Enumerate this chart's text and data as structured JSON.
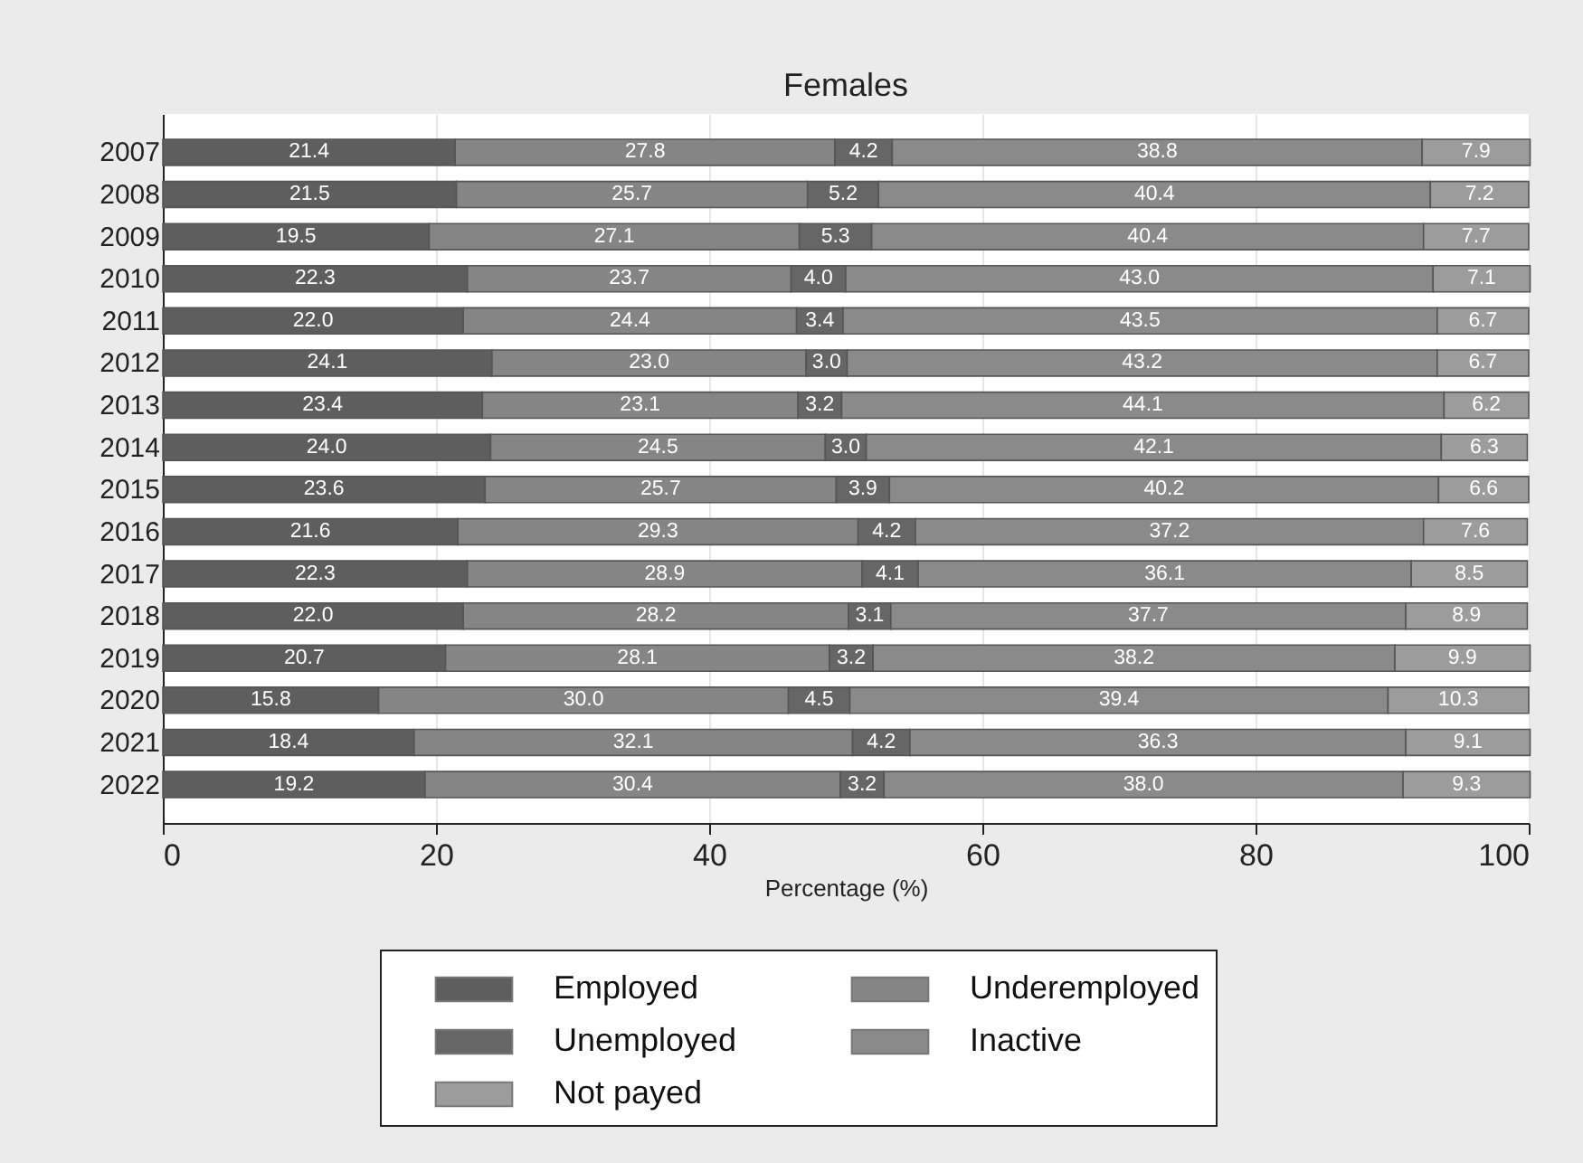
{
  "chart_data": {
    "type": "bar",
    "orientation": "horizontal",
    "stacked": true,
    "title": "Females",
    "xlabel": "Percentage (%)",
    "categories": [
      "2007",
      "2008",
      "2009",
      "2010",
      "2011",
      "2012",
      "2013",
      "2014",
      "2015",
      "2016",
      "2017",
      "2018",
      "2019",
      "2020",
      "2021",
      "2022"
    ],
    "series": [
      {
        "name": "Employed",
        "color": "#5e5e5e",
        "values": [
          21.4,
          21.5,
          19.5,
          22.3,
          22.0,
          24.1,
          23.4,
          24.0,
          23.6,
          21.6,
          22.3,
          22.0,
          20.7,
          15.8,
          18.4,
          19.2
        ],
        "value_labels": [
          "21.4",
          "21.5",
          "19.5",
          "22.3",
          "22.0",
          "24.1",
          "23.4",
          "24.0",
          "23.6",
          "21.6",
          "22.3",
          "22.0",
          "20.7",
          "15.8",
          "18.4",
          "19.2"
        ]
      },
      {
        "name": "Underemployed",
        "color": "#858585",
        "values": [
          27.8,
          25.7,
          27.1,
          23.7,
          24.4,
          23.0,
          23.1,
          24.5,
          25.7,
          29.3,
          28.9,
          28.2,
          28.1,
          30.0,
          32.1,
          30.4
        ],
        "value_labels": [
          "27.8",
          "25.7",
          "27.1",
          "23.7",
          "24.4",
          "23.0",
          "23.1",
          "24.5",
          "25.7",
          "29.3",
          "28.9",
          "28.2",
          "28.1",
          "30.0",
          "32.1",
          "30.4"
        ]
      },
      {
        "name": "Unemployed",
        "color": "#666666",
        "values": [
          4.2,
          5.2,
          5.3,
          4.0,
          3.4,
          3.0,
          3.2,
          3.0,
          3.9,
          4.2,
          4.1,
          3.1,
          3.2,
          4.5,
          4.2,
          3.2
        ],
        "value_labels": [
          "4.2",
          "5.2",
          "5.3",
          "4.0",
          "3.4",
          "3.0",
          "3.2",
          "3.0",
          "3.9",
          "4.2",
          "4.1",
          "3.1",
          "3.2",
          "4.5",
          "4.2",
          "3.2"
        ]
      },
      {
        "name": "Inactive",
        "color": "#8a8a8a",
        "values": [
          38.8,
          40.4,
          40.4,
          43.0,
          43.5,
          43.2,
          44.1,
          42.1,
          40.2,
          37.2,
          36.1,
          37.7,
          38.2,
          39.4,
          36.3,
          38.0
        ],
        "value_labels": [
          "38.8",
          "40.4",
          "40.4",
          "43.0",
          "43.5",
          "43.2",
          "44.1",
          "42.1",
          "40.2",
          "37.2",
          "36.1",
          "37.7",
          "38.2",
          "39.4",
          "36.3",
          "38.0"
        ]
      },
      {
        "name": "Not payed",
        "color": "#9c9c9c",
        "values": [
          7.9,
          7.2,
          7.7,
          7.1,
          6.7,
          6.7,
          6.2,
          6.3,
          6.6,
          7.6,
          8.5,
          8.9,
          9.9,
          10.3,
          9.1,
          9.3
        ],
        "value_labels": [
          "7.9",
          "7.2",
          "7.7",
          "7.1",
          "6.7",
          "6.7",
          "6.2",
          "6.3",
          "6.6",
          "7.6",
          "8.5",
          "8.9",
          "9.9",
          "10.3",
          "9.1",
          "9.3"
        ]
      }
    ],
    "xlim": [
      0,
      100
    ],
    "xticks": [
      0,
      20,
      40,
      60,
      80,
      100
    ],
    "grid": "x",
    "legend": "bottom"
  }
}
